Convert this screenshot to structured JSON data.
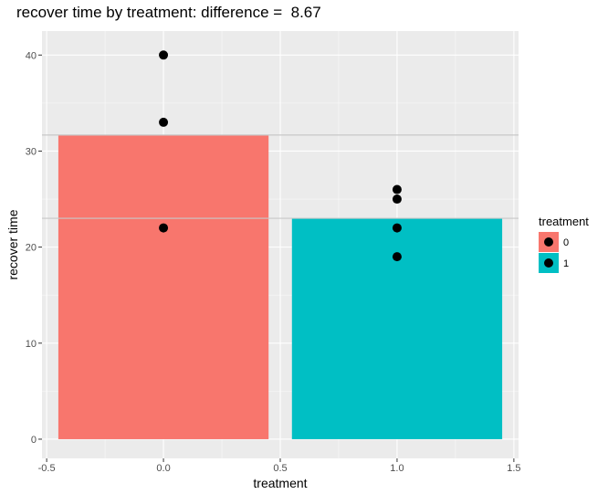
{
  "chart_data": {
    "type": "bar",
    "title": "recover time by treatment: difference =  8.67",
    "xlabel": "treatment",
    "ylabel": "recover time",
    "x_ticks": [
      -0.5,
      0.0,
      0.5,
      1.0,
      1.5
    ],
    "x_tick_labels": [
      "-0.5",
      "0.0",
      "0.5",
      "1.0",
      "1.5"
    ],
    "y_ticks": [
      0,
      10,
      20,
      30,
      40
    ],
    "y_tick_labels": [
      "0",
      "10",
      "20",
      "30",
      "40"
    ],
    "xlim": [
      -0.52,
      1.52
    ],
    "ylim": [
      -2,
      42.5
    ],
    "bars": [
      {
        "group": "0",
        "x": 0.0,
        "value": 31.67,
        "color": "#F8766D"
      },
      {
        "group": "1",
        "x": 1.0,
        "value": 23.0,
        "color": "#00BFC4"
      }
    ],
    "bar_width": 0.9,
    "points": [
      {
        "x": 0,
        "y": 40,
        "group": "0"
      },
      {
        "x": 0,
        "y": 33,
        "group": "0"
      },
      {
        "x": 0,
        "y": 22,
        "group": "0"
      },
      {
        "x": 1,
        "y": 26,
        "group": "1"
      },
      {
        "x": 1,
        "y": 25,
        "group": "1"
      },
      {
        "x": 1,
        "y": 22,
        "group": "1"
      },
      {
        "x": 1,
        "y": 19,
        "group": "1"
      }
    ],
    "hlines": [
      31.67,
      23.0
    ],
    "legend": {
      "title": "treatment",
      "position": "right",
      "items": [
        {
          "label": "0",
          "color": "#F8766D"
        },
        {
          "label": "1",
          "color": "#00BFC4"
        }
      ]
    },
    "grid": true,
    "panel_background": "#EBEBEB"
  }
}
